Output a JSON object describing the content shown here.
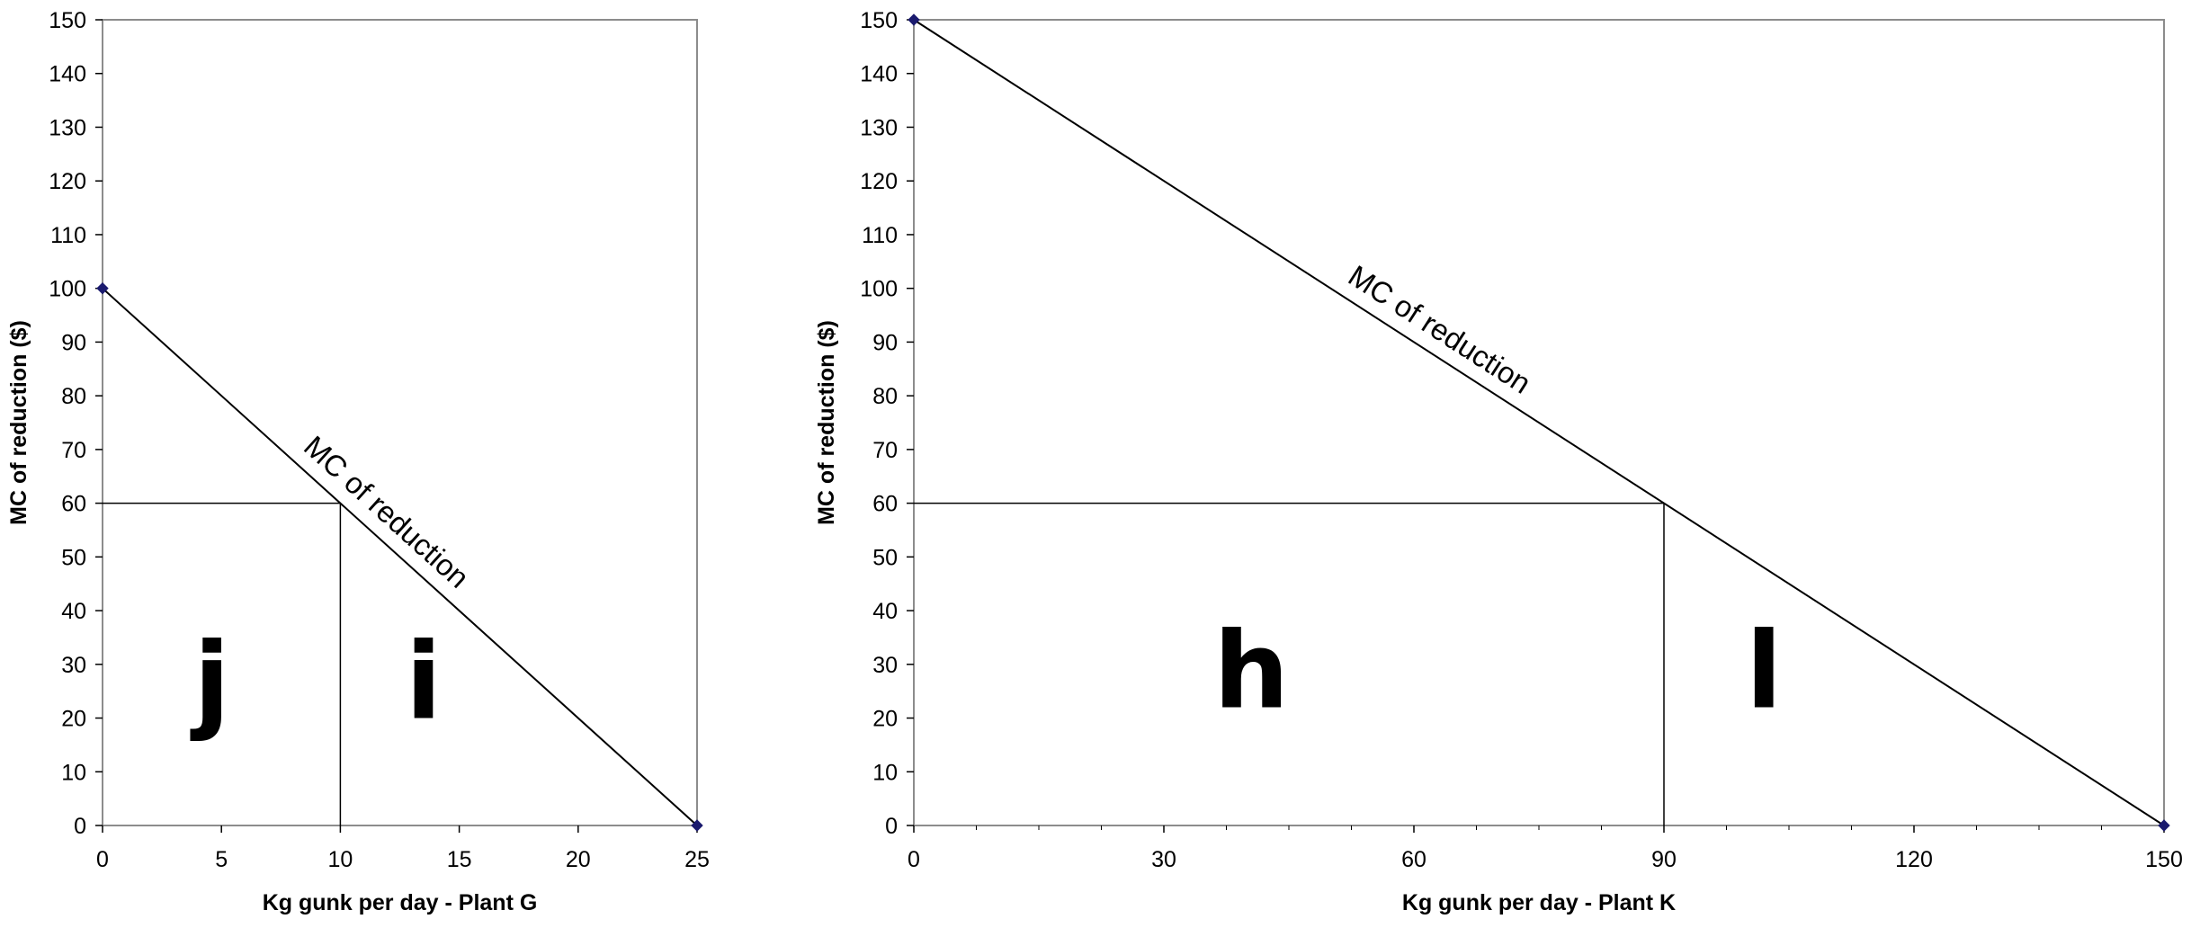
{
  "chart_data": [
    {
      "type": "line",
      "title": "",
      "xlabel": "Kg gunk per day - Plant G",
      "ylabel": "MC of reduction ($)",
      "xlim": [
        0,
        25
      ],
      "ylim": [
        0,
        150
      ],
      "x_ticks": [
        0,
        5,
        10,
        15,
        20,
        25
      ],
      "y_ticks": [
        0,
        10,
        20,
        30,
        40,
        50,
        60,
        70,
        80,
        90,
        100,
        110,
        120,
        130,
        140,
        150
      ],
      "series": [
        {
          "name": "MC of reduction",
          "x": [
            0,
            25
          ],
          "y": [
            100,
            0
          ]
        }
      ],
      "curve_label": "MC of reduction",
      "reference": {
        "x": 10,
        "y": 60
      },
      "regions": [
        {
          "label": "j",
          "x": 4.6,
          "y": 20
        },
        {
          "label": "i",
          "x": 13.5,
          "y": 20
        }
      ],
      "grid": false
    },
    {
      "type": "line",
      "title": "",
      "xlabel": "Kg gunk per day - Plant K",
      "ylabel": "MC of reduction ($)",
      "xlim": [
        0,
        150
      ],
      "ylim": [
        0,
        150
      ],
      "x_ticks": [
        0,
        30,
        60,
        90,
        120,
        150
      ],
      "y_ticks": [
        0,
        10,
        20,
        30,
        40,
        50,
        60,
        70,
        80,
        90,
        100,
        110,
        120,
        130,
        140,
        150
      ],
      "series": [
        {
          "name": "MC of reduction",
          "x": [
            0,
            150
          ],
          "y": [
            150,
            0
          ]
        }
      ],
      "curve_label": "MC of reduction",
      "reference": {
        "x": 90,
        "y": 60
      },
      "regions": [
        {
          "label": "h",
          "x": 40.5,
          "y": 22
        },
        {
          "label": "l",
          "x": 102,
          "y": 22
        }
      ],
      "grid": false
    }
  ]
}
